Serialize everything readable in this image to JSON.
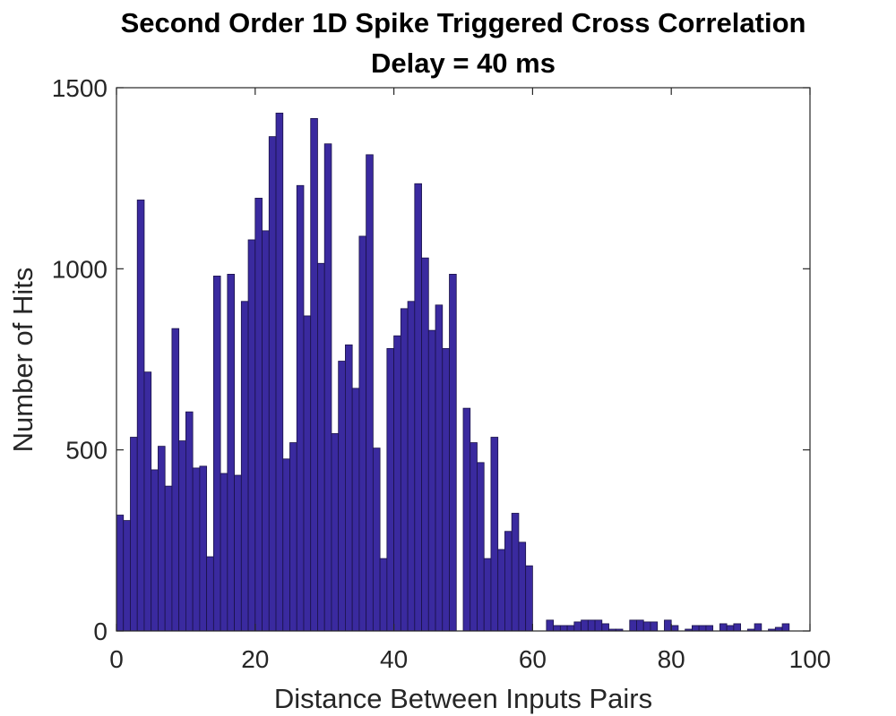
{
  "chart_data": {
    "type": "bar",
    "title": "Second Order 1D Spike Triggered Cross Correlation",
    "subtitle": "Delay = 40 ms",
    "xlabel": "Distance Between Inputs Pairs",
    "ylabel": "Number of Hits",
    "xlim": [
      0,
      100
    ],
    "ylim": [
      0,
      1500
    ],
    "xticks": [
      "0",
      "20",
      "40",
      "60",
      "80",
      "100"
    ],
    "yticks": [
      "0",
      "500",
      "1000",
      "1500"
    ],
    "bin_width": 1,
    "x": [
      0,
      1,
      2,
      3,
      4,
      5,
      6,
      7,
      8,
      9,
      10,
      11,
      12,
      13,
      14,
      15,
      16,
      17,
      18,
      19,
      20,
      21,
      22,
      23,
      24,
      25,
      26,
      27,
      28,
      29,
      30,
      31,
      32,
      33,
      34,
      35,
      36,
      37,
      38,
      39,
      40,
      41,
      42,
      43,
      44,
      45,
      46,
      47,
      48,
      49,
      50,
      51,
      52,
      53,
      54,
      55,
      56,
      57,
      58,
      59,
      60,
      61,
      62,
      63,
      64,
      65,
      66,
      67,
      68,
      69,
      70,
      71,
      72,
      73,
      74,
      75,
      76,
      77,
      78,
      79,
      80,
      81,
      82,
      83,
      84,
      85,
      86,
      87,
      88,
      89,
      90,
      91,
      92,
      93,
      94,
      95,
      96,
      97
    ],
    "values": [
      320,
      305,
      535,
      1190,
      715,
      445,
      510,
      400,
      835,
      525,
      605,
      450,
      455,
      205,
      980,
      435,
      985,
      430,
      910,
      1080,
      1195,
      1105,
      1365,
      1430,
      475,
      520,
      1230,
      870,
      1415,
      1015,
      1345,
      545,
      745,
      790,
      670,
      1090,
      1315,
      505,
      200,
      780,
      815,
      890,
      910,
      1235,
      1030,
      830,
      900,
      780,
      985,
      0,
      615,
      520,
      465,
      200,
      535,
      225,
      275,
      325,
      245,
      180,
      0,
      0,
      30,
      15,
      15,
      15,
      25,
      30,
      30,
      30,
      20,
      5,
      5,
      0,
      30,
      30,
      25,
      25,
      0,
      30,
      15,
      0,
      5,
      15,
      15,
      15,
      0,
      20,
      15,
      20,
      0,
      5,
      20,
      0,
      5,
      10,
      20,
      0
    ],
    "bar_color": "#3a2a9f",
    "bar_edge_color": "#1a1248",
    "grid": false,
    "legend": "none"
  }
}
